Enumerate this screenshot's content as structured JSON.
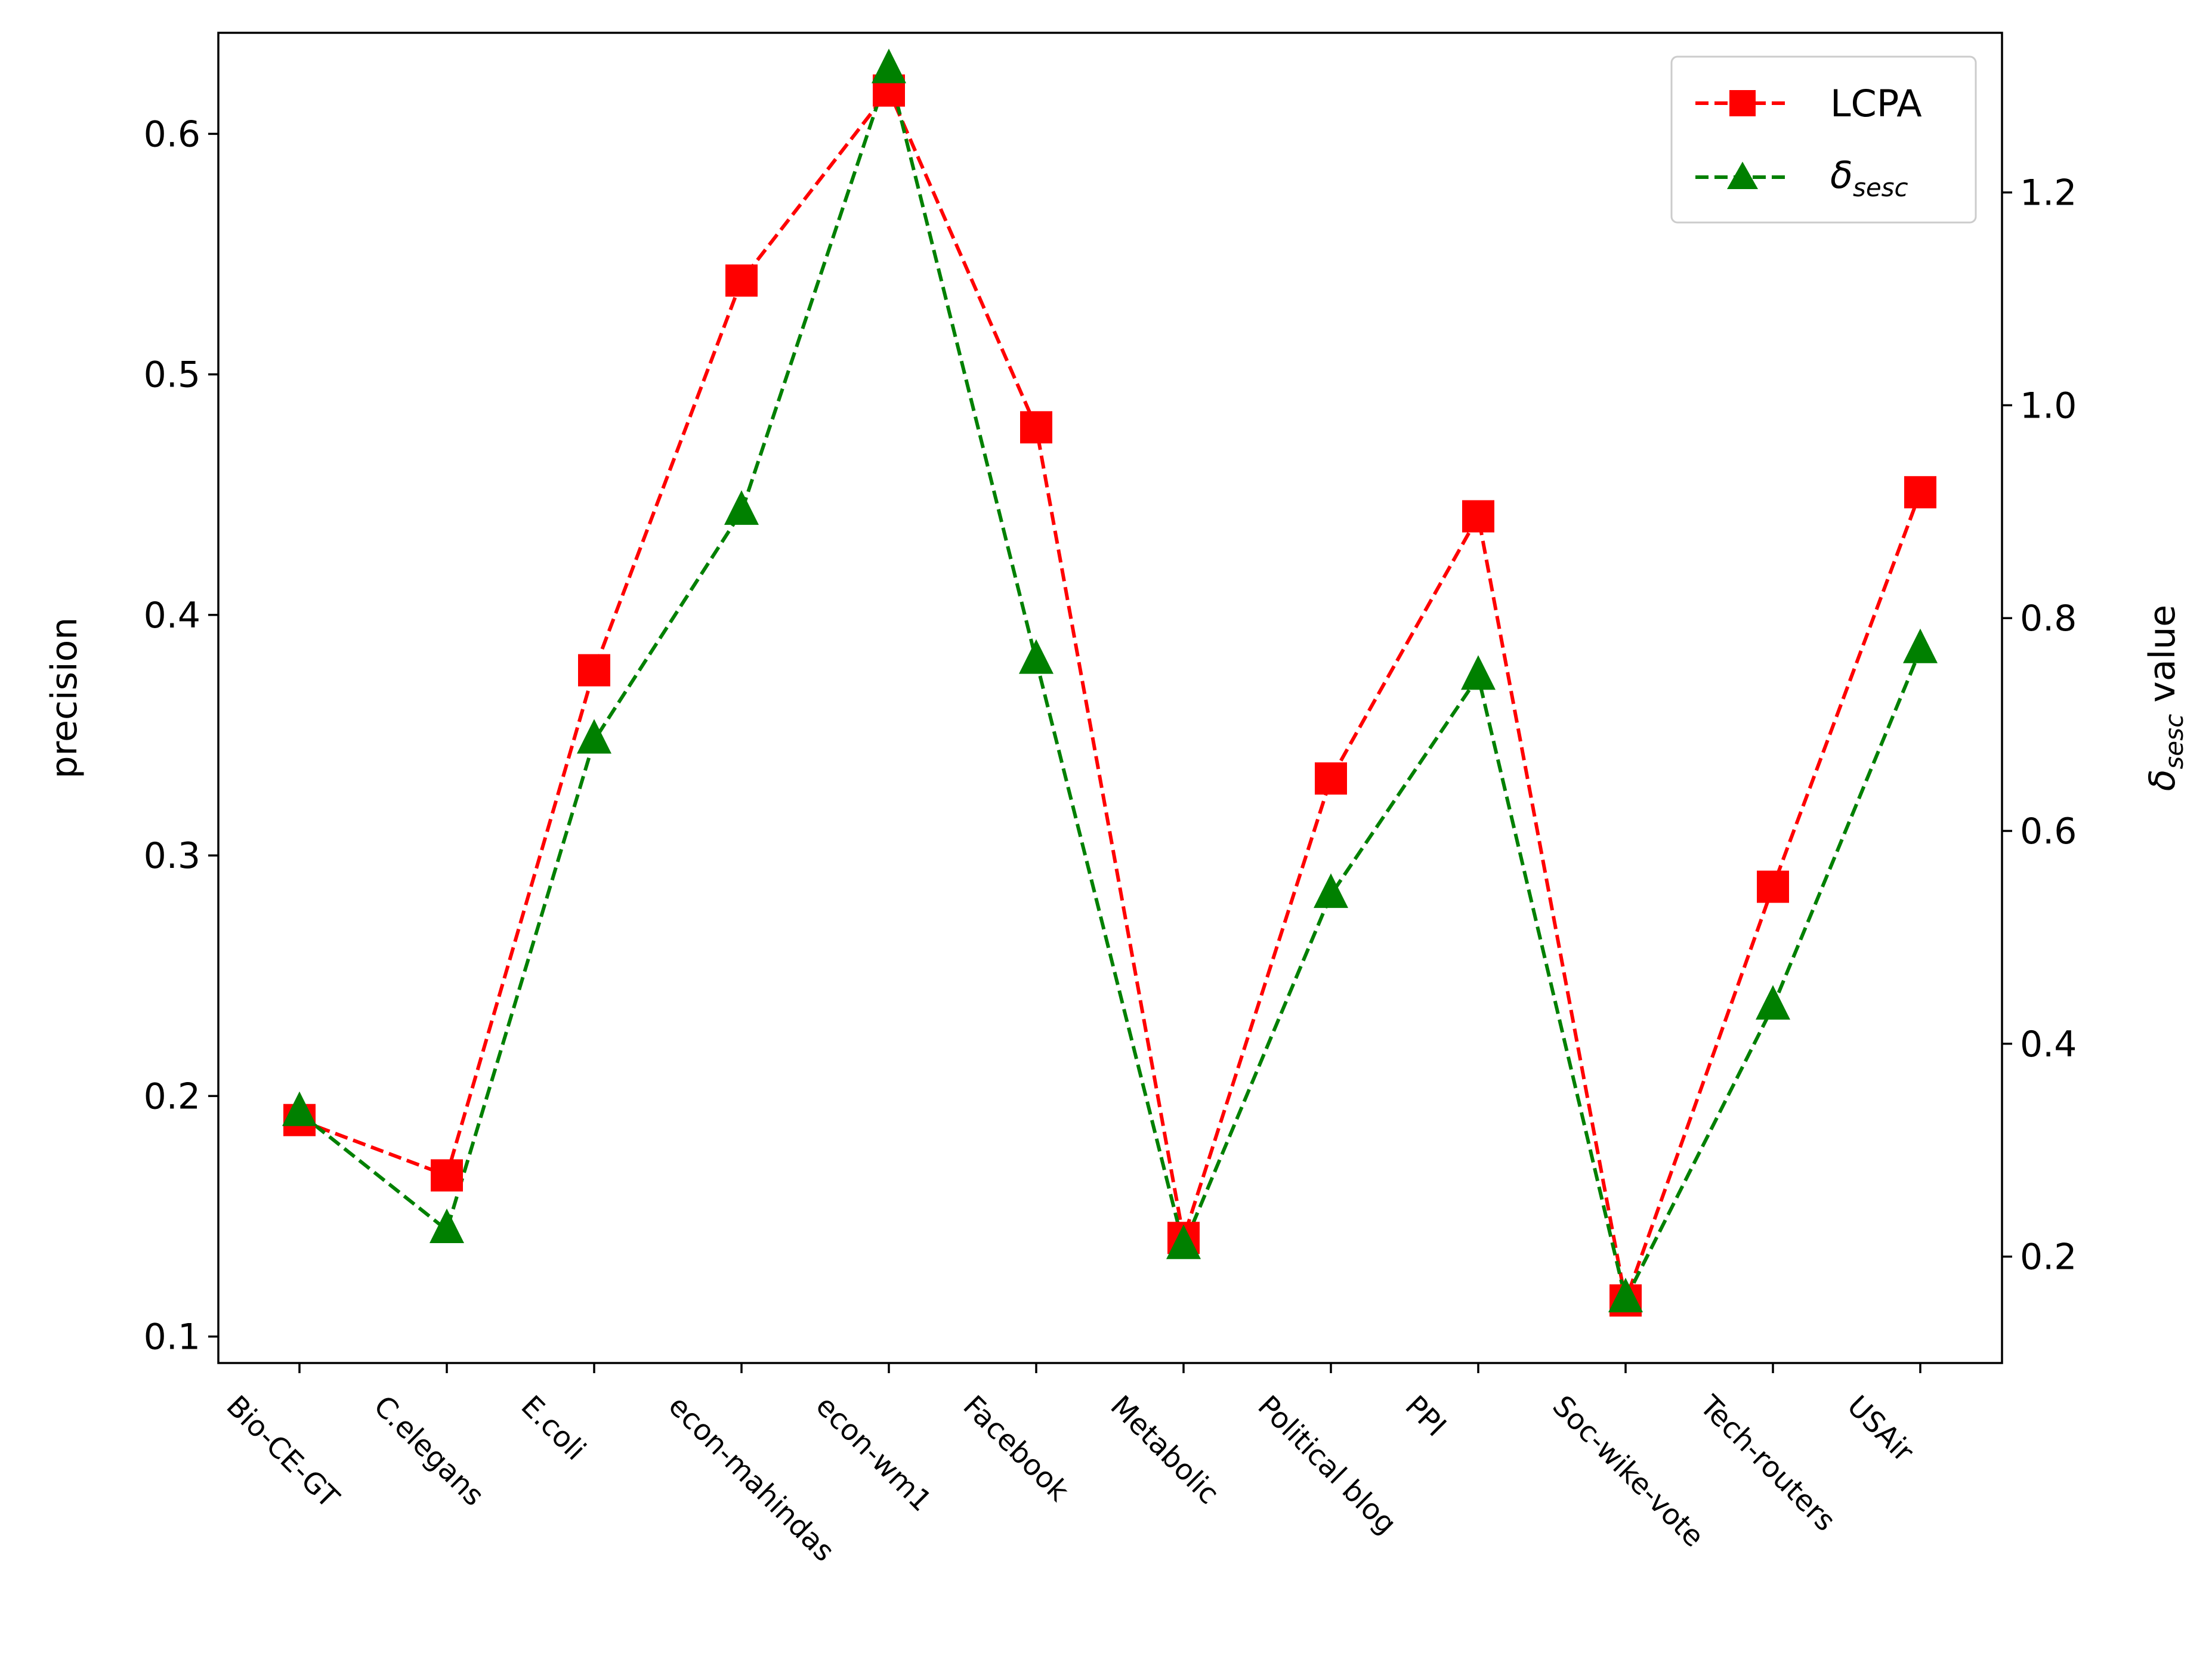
{
  "chart_data": {
    "type": "line",
    "categories": [
      "Bio-CE-GT",
      "C.elegans",
      "E.coli",
      "econ-mahindas",
      "econ-wm1",
      "Facebook",
      "Metabolic",
      "Political blog",
      "PPI",
      "Soc-wike-vote",
      "Tech-routers",
      "USAir"
    ],
    "series": [
      {
        "name": "LCPA",
        "axis": "left",
        "color": "#ff0000",
        "marker": "square",
        "linestyle": "dashed",
        "values": [
          0.19,
          0.167,
          0.377,
          0.539,
          0.618,
          0.478,
          0.141,
          0.332,
          0.441,
          0.115,
          0.287,
          0.451
        ]
      },
      {
        "name": "δ",
        "name_sub": "sesc",
        "axis": "right",
        "color": "#008000",
        "marker": "triangle",
        "linestyle": "dashed",
        "values": [
          0.335,
          0.225,
          0.685,
          0.9,
          1.315,
          0.76,
          0.21,
          0.54,
          0.745,
          0.16,
          0.435,
          0.77
        ]
      }
    ],
    "ylabel": "precision",
    "y2label_symbol": "δ",
    "y2label_sub": "sesc",
    "y2label_suffix": " value",
    "ylim": [
      0.089,
      0.642
    ],
    "y2lim": [
      0.1,
      1.35
    ],
    "yticks": [
      0.1,
      0.2,
      0.3,
      0.4,
      0.5,
      0.6
    ],
    "yticklabels": [
      "0.1",
      "0.2",
      "0.3",
      "0.4",
      "0.5",
      "0.6"
    ],
    "y2ticks": [
      0.2,
      0.4,
      0.6,
      0.8,
      1.0,
      1.2
    ],
    "y2ticklabels": [
      "0.2",
      "0.4",
      "0.6",
      "0.8",
      "1.0",
      "1.2"
    ],
    "legend_position": "top-right",
    "grid": false
  }
}
